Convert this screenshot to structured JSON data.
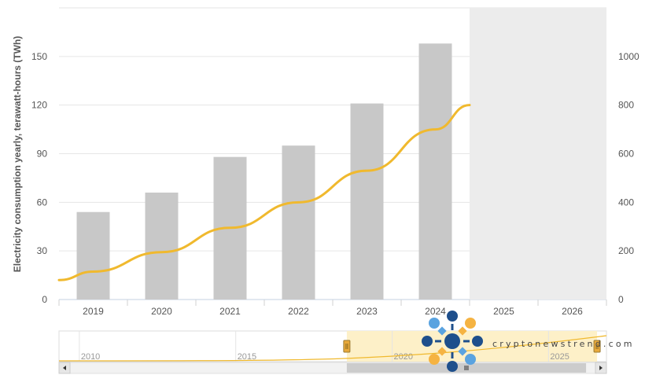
{
  "chart_data": {
    "type": "bar",
    "categories": [
      "2019",
      "2020",
      "2021",
      "2022",
      "2023",
      "2024",
      "2025",
      "2026"
    ],
    "series": [
      {
        "type": "bar",
        "axis": "left",
        "values": [
          54,
          66,
          88,
          95,
          121,
          158,
          null,
          null
        ],
        "color": "#c8c8c8"
      },
      {
        "type": "line",
        "axis": "right",
        "x": [
          2018.5,
          2019,
          2020,
          2021,
          2022,
          2023,
          2024,
          2024.5
        ],
        "values": [
          80,
          115,
          195,
          295,
          400,
          530,
          700,
          800
        ],
        "color": "#f0b92e"
      }
    ],
    "ylabel": "Electricity consumption yearly, terawatt-hours (TWh)",
    "yticks_left": [
      "0",
      "30",
      "60",
      "90",
      "120",
      "150"
    ],
    "ylim_left": [
      0,
      180
    ],
    "yticks_right": [
      "0",
      "200",
      "400",
      "600",
      "800",
      "1000"
    ],
    "ylim_right": [
      0,
      1200
    ],
    "grid": true,
    "navigator": {
      "tick_labels": [
        "2010",
        "2015",
        "2020",
        "2025"
      ],
      "range_start_year": 2018.5,
      "range_end_year": 2026.5
    }
  },
  "watermark": {
    "text": "cryptonewstrend.com",
    "colors": {
      "navy": "#1e4f8c",
      "orange": "#f5b342",
      "blue": "#5aa3e0"
    }
  },
  "colors": {
    "bar": "#c8c8c8",
    "line": "#f0b92e",
    "grid": "#e6e6e6",
    "axis_text": "#555555",
    "navigator_mask": "#fdf0c8",
    "navigator_handle": "#e8a93b",
    "scrollbar": "#cccccc"
  }
}
